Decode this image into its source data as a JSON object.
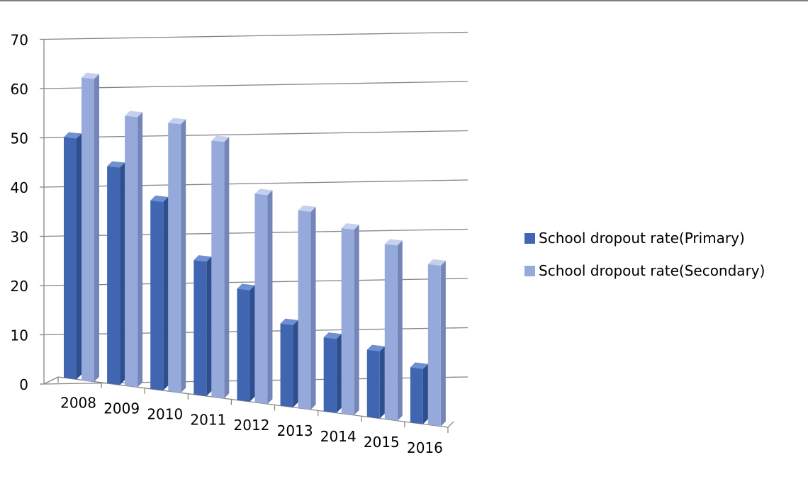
{
  "chart_data": {
    "type": "bar",
    "title": "",
    "xlabel": "",
    "ylabel": "",
    "ylim": [
      0,
      70
    ],
    "yticks": [
      0,
      10,
      20,
      30,
      40,
      50,
      60,
      70
    ],
    "categories": [
      "2008",
      "2009",
      "2010",
      "2011",
      "2012",
      "2013",
      "2014",
      "2015",
      "2016"
    ],
    "series": [
      {
        "name": "School dropout rate(Primary)",
        "values": [
          48.8,
          43.8,
          37.8,
          26.8,
          22.1,
          16.2,
          14.5,
          13.1,
          10.7
        ],
        "color": "#4066B2"
      },
      {
        "name": "School dropout rate(Secondary)",
        "values": [
          61.2,
          54.3,
          53.7,
          51.0,
          41.3,
          38.9,
          36.3,
          34.1,
          31.1
        ],
        "color": "#95A9DB"
      }
    ],
    "grid": true,
    "legend": "right",
    "style": "3d-column"
  }
}
